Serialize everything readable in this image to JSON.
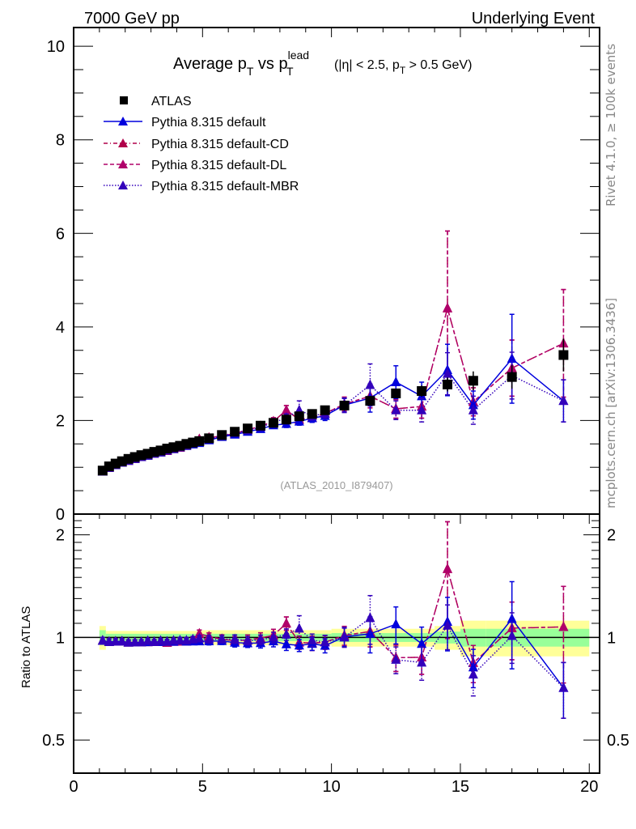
{
  "header": {
    "left_label": "7000 GeV pp",
    "right_label": "Underlying Event"
  },
  "side_labels": {
    "rivet": "Rivet 4.1.0, ≥ 100k events",
    "mcplots": "mcplots.cern.ch [arXiv:1306.3436]"
  },
  "chart_data": [
    {
      "type": "scatter",
      "title": "Average p_T vs p_T^lead (|η| < 2.5, p_T > 0.5 GeV)",
      "title_parts": {
        "main": "Average p",
        "sub1": "T",
        "mid": " vs p",
        "sup": "lead",
        "sub2": "T",
        "cuts_a": "(|η| < 2.5, p",
        "cuts_sub": "T",
        "cuts_b": " > 0.5 GeV)"
      },
      "watermark": "(ATLAS_2010_I879407)",
      "xlabel": "",
      "ylabel": "",
      "xlim": [
        0,
        20.4
      ],
      "ylim": [
        0,
        10.4
      ],
      "xticks": [
        0,
        5,
        10,
        15,
        20
      ],
      "yticks": [
        0,
        2,
        4,
        6,
        8,
        10
      ],
      "legend_position": "top-left",
      "legend": [
        {
          "label": "ATLAS",
          "marker": "square",
          "color": "#000000",
          "line": "none"
        },
        {
          "label": "Pythia 8.315 default",
          "marker": "triangle",
          "color": "#0000dd",
          "line": "solid"
        },
        {
          "label": "Pythia 8.315 default-CD",
          "marker": "triangle",
          "color": "#b0004a",
          "line": "dashdot"
        },
        {
          "label": "Pythia 8.315 default-DL",
          "marker": "triangle",
          "color": "#b0006a",
          "line": "dashed"
        },
        {
          "label": "Pythia 8.315 default-MBR",
          "marker": "triangle",
          "color": "#3300bb",
          "line": "dotted"
        }
      ],
      "x": [
        1.125,
        1.375,
        1.625,
        1.875,
        2.125,
        2.375,
        2.625,
        2.875,
        3.125,
        3.375,
        3.625,
        3.875,
        4.125,
        4.375,
        4.625,
        4.875,
        5.25,
        5.75,
        6.25,
        6.75,
        7.25,
        7.75,
        8.25,
        8.75,
        9.25,
        9.75,
        10.5,
        11.5,
        12.5,
        13.5,
        14.5,
        15.5,
        17.0,
        19.0
      ],
      "series": [
        {
          "name": "ATLAS",
          "values": [
            0.93,
            1.02,
            1.08,
            1.13,
            1.18,
            1.22,
            1.26,
            1.29,
            1.33,
            1.36,
            1.4,
            1.43,
            1.46,
            1.5,
            1.53,
            1.56,
            1.62,
            1.69,
            1.76,
            1.83,
            1.89,
            1.95,
            2.02,
            2.09,
            2.14,
            2.22,
            2.32,
            2.42,
            2.58,
            2.63,
            2.77,
            2.85,
            2.93,
            3.4
          ],
          "err": [
            0.02,
            0.02,
            0.02,
            0.02,
            0.02,
            0.02,
            0.02,
            0.02,
            0.02,
            0.02,
            0.02,
            0.02,
            0.02,
            0.02,
            0.03,
            0.03,
            0.03,
            0.03,
            0.04,
            0.04,
            0.04,
            0.05,
            0.05,
            0.05,
            0.06,
            0.06,
            0.06,
            0.08,
            0.1,
            0.12,
            0.15,
            0.2,
            0.25,
            0.35
          ]
        },
        {
          "name": "Pythia 8.315 default",
          "values": [
            0.91,
            0.99,
            1.05,
            1.1,
            1.14,
            1.18,
            1.22,
            1.25,
            1.29,
            1.32,
            1.36,
            1.39,
            1.43,
            1.46,
            1.49,
            1.52,
            1.58,
            1.65,
            1.7,
            1.76,
            1.82,
            1.9,
            1.93,
            1.98,
            2.05,
            2.1,
            2.33,
            2.48,
            2.82,
            2.52,
            3.08,
            2.33,
            3.32,
            2.42
          ],
          "err": [
            0.02,
            0.02,
            0.02,
            0.02,
            0.02,
            0.02,
            0.02,
            0.02,
            0.02,
            0.02,
            0.02,
            0.02,
            0.03,
            0.03,
            0.03,
            0.03,
            0.04,
            0.04,
            0.05,
            0.05,
            0.06,
            0.07,
            0.08,
            0.08,
            0.09,
            0.1,
            0.15,
            0.3,
            0.35,
            0.3,
            0.55,
            0.3,
            0.95,
            0.45
          ]
        },
        {
          "name": "Pythia 8.315 default-CD",
          "values": [
            0.91,
            0.99,
            1.05,
            1.1,
            1.14,
            1.18,
            1.22,
            1.25,
            1.29,
            1.32,
            1.35,
            1.39,
            1.42,
            1.46,
            1.5,
            1.6,
            1.63,
            1.67,
            1.72,
            1.8,
            1.88,
            1.98,
            2.22,
            2.02,
            2.06,
            2.15,
            2.35,
            2.52,
            2.25,
            2.3,
            4.4,
            2.4,
            3.12,
            3.65
          ],
          "err": [
            0.02,
            0.02,
            0.02,
            0.02,
            0.02,
            0.02,
            0.02,
            0.02,
            0.02,
            0.02,
            0.02,
            0.02,
            0.03,
            0.03,
            0.03,
            0.04,
            0.04,
            0.05,
            0.05,
            0.06,
            0.07,
            0.08,
            0.1,
            0.09,
            0.1,
            0.1,
            0.15,
            0.25,
            0.2,
            0.25,
            1.65,
            0.3,
            0.6,
            1.15
          ]
        },
        {
          "name": "Pythia 8.315 default-DL",
          "values": [
            0.91,
            0.99,
            1.05,
            1.1,
            1.14,
            1.18,
            1.22,
            1.25,
            1.29,
            1.32,
            1.35,
            1.39,
            1.42,
            1.46,
            1.5,
            1.6,
            1.63,
            1.67,
            1.72,
            1.8,
            1.88,
            1.98,
            2.22,
            2.02,
            2.06,
            2.15,
            2.35,
            2.52,
            2.25,
            2.3,
            4.4,
            2.4,
            3.12,
            3.65
          ],
          "err": [
            0.02,
            0.02,
            0.02,
            0.02,
            0.02,
            0.02,
            0.02,
            0.02,
            0.02,
            0.02,
            0.02,
            0.02,
            0.03,
            0.03,
            0.03,
            0.04,
            0.04,
            0.05,
            0.05,
            0.06,
            0.07,
            0.08,
            0.1,
            0.09,
            0.1,
            0.1,
            0.15,
            0.25,
            0.2,
            0.25,
            1.65,
            0.3,
            0.6,
            1.15
          ]
        },
        {
          "name": "Pythia 8.315 default-MBR",
          "values": [
            0.91,
            0.99,
            1.05,
            1.1,
            1.14,
            1.18,
            1.22,
            1.26,
            1.29,
            1.33,
            1.36,
            1.4,
            1.43,
            1.47,
            1.51,
            1.55,
            1.6,
            1.67,
            1.74,
            1.79,
            1.86,
            1.95,
            2.06,
            2.22,
            2.1,
            2.15,
            2.32,
            2.76,
            2.22,
            2.22,
            3.0,
            2.22,
            2.96,
            2.42
          ],
          "err": [
            0.02,
            0.02,
            0.02,
            0.02,
            0.02,
            0.02,
            0.02,
            0.02,
            0.02,
            0.02,
            0.02,
            0.02,
            0.03,
            0.03,
            0.03,
            0.03,
            0.04,
            0.04,
            0.05,
            0.05,
            0.06,
            0.07,
            0.08,
            0.2,
            0.09,
            0.1,
            0.15,
            0.45,
            0.2,
            0.25,
            0.45,
            0.3,
            0.5,
            0.45
          ]
        }
      ]
    },
    {
      "type": "scatter",
      "ylabel": "Ratio to ATLAS",
      "yscale": "log",
      "ylim": [
        0.4,
        2.3
      ],
      "yticks": [
        0.5,
        1,
        2
      ],
      "xlim": [
        0,
        20.4
      ],
      "xticks": [
        0,
        5,
        10,
        15,
        20
      ],
      "reference_line": 1,
      "band_colors": {
        "stat": "#99ff99",
        "total": "#ffff99"
      },
      "band_edges": [
        1.0,
        1.25,
        5.0,
        10.0,
        14.0,
        15.0,
        16.0,
        20.0
      ],
      "band_inner": [
        0.05,
        0.025,
        0.025,
        0.03,
        0.04,
        0.06,
        0.06
      ],
      "band_outer": [
        0.08,
        0.045,
        0.05,
        0.06,
        0.08,
        0.12,
        0.12
      ]
    }
  ]
}
